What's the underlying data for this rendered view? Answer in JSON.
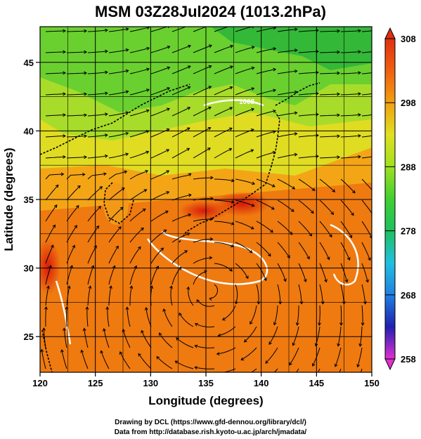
{
  "title": "MSM 03Z28Jul2024 (1013.2hPa)",
  "x_axis": {
    "label": "Longitude (degrees)",
    "ticks": [
      "120",
      "125",
      "130",
      "135",
      "140",
      "145",
      "150"
    ]
  },
  "y_axis": {
    "label": "Latitude  (degrees)",
    "ticks": [
      "25",
      "30",
      "35",
      "40",
      "45"
    ]
  },
  "colorbar": {
    "ticks": [
      "258",
      "268",
      "278",
      "288",
      "298",
      "308"
    ],
    "stops": [
      "#e030d0",
      "#2020b0",
      "#2080e0",
      "#20c0e0",
      "#20c060",
      "#40d030",
      "#a0e020",
      "#e0e020",
      "#f0a010",
      "#f06010",
      "#e03010"
    ]
  },
  "contour_labels": [
    "1008"
  ],
  "credits": {
    "line1": "Drawing by DCL (https://www.gfd-dennou.org/library/dcl/)",
    "line2": "Data from http://database.rish.kyoto-u.ac.jp/arch/jmadata/"
  },
  "chart_data": {
    "type": "heatmap",
    "title": "MSM 03Z28Jul2024 (1013.2hPa)",
    "xlabel": "Longitude (degrees)",
    "ylabel": "Latitude  (degrees)",
    "xlim": [
      120,
      150
    ],
    "ylim": [
      22.4,
      47.6
    ],
    "colorbar_range": [
      258,
      308
    ],
    "colorbar_ticks": [
      258,
      268,
      278,
      288,
      298,
      308
    ],
    "field": "temperature (K) with wind streamlines and white pressure contours",
    "contour_labels": [
      1008
    ],
    "grid": true
  }
}
